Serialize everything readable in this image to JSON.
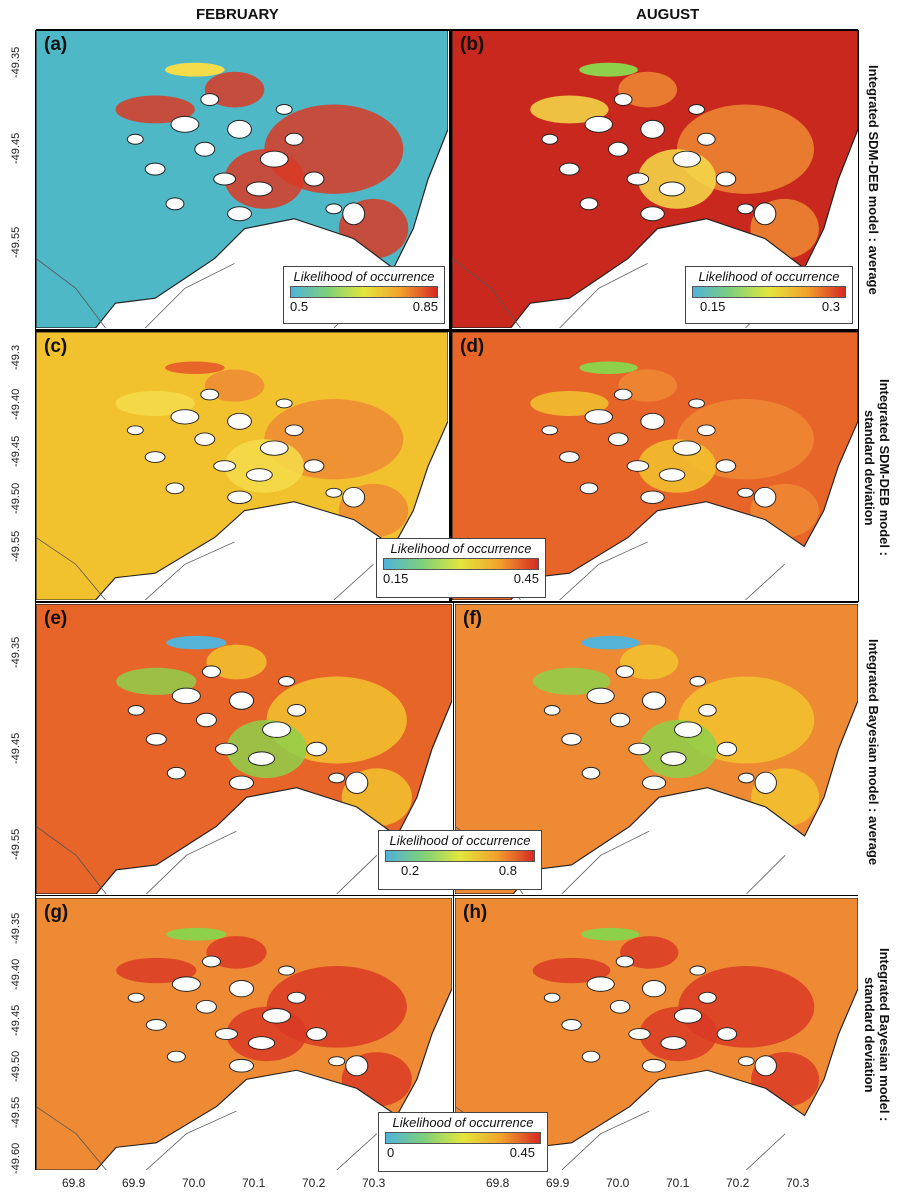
{
  "columns": {
    "left": "FEBRUARY",
    "right": "AUGUST"
  },
  "row_labels": [
    {
      "line1": "Integrated SDM-DEB model : average",
      "line2": ""
    },
    {
      "line1": "Integrated SDM-DEB model :",
      "line2": "standard deviation"
    },
    {
      "line1": "Integrated Bayesian model : average",
      "line2": ""
    },
    {
      "line1": "Integrated Bayesian model :",
      "line2": "standard deviation"
    }
  ],
  "panels": [
    {
      "id": "a",
      "label": "(a)",
      "scheme": "teal"
    },
    {
      "id": "b",
      "label": "(b)",
      "scheme": "red"
    },
    {
      "id": "c",
      "label": "(c)",
      "scheme": "yellow"
    },
    {
      "id": "d",
      "label": "(d)",
      "scheme": "orange"
    },
    {
      "id": "e",
      "label": "(e)",
      "scheme": "mixA"
    },
    {
      "id": "f",
      "label": "(f)",
      "scheme": "mixB"
    },
    {
      "id": "g",
      "label": "(g)",
      "scheme": "sdA"
    },
    {
      "id": "h",
      "label": "(h)",
      "scheme": "sdB"
    }
  ],
  "legends": [
    {
      "title": "Likelihood of occurrence",
      "min": "0.5",
      "max": "0.85"
    },
    {
      "title": "Likelihood of occurrence",
      "min": "0.15",
      "max": "0.3"
    },
    {
      "title": "Likelihood of occurrence",
      "min": "0.15",
      "max": "0.45"
    },
    {
      "title": "Likelihood of occurrence",
      "min": "0.2",
      "max": "0.8"
    },
    {
      "title": "Likelihood of occurrence",
      "min": "0",
      "max": "0.45"
    }
  ],
  "y_ticks": {
    "row1": [
      "-49.35",
      "-49.45",
      "-49.55"
    ],
    "row2": [
      "-49.3",
      "-49.40",
      "-49.45",
      "-49.50",
      "-49.55"
    ],
    "row3": [
      "-49.35",
      "-49.45",
      "-49.55"
    ],
    "row4": [
      "-49.35",
      "-49.40",
      "-49.45",
      "-49.50",
      "-49.55",
      "-49.60"
    ]
  },
  "x_ticks": {
    "left": [
      "69.8",
      "69.9",
      "70.0",
      "70.1",
      "70.2",
      "70.3"
    ],
    "right": [
      "69.8",
      "69.9",
      "70.0",
      "70.1",
      "70.2",
      "70.3"
    ]
  },
  "colors": {
    "teal": "#4fb8c6",
    "red_dark": "#c8281e",
    "red": "#d93a24",
    "orange": "#e8652a",
    "orange_light": "#ee8a34",
    "yellow": "#f2c22e",
    "yellow_light": "#f4dc4a",
    "green": "#8ed04a",
    "blue": "#55b3d8",
    "colorbar_stops": [
      "#4fb3d9",
      "#7fd07a",
      "#e3e63b",
      "#f2a12c",
      "#d62a24"
    ]
  }
}
